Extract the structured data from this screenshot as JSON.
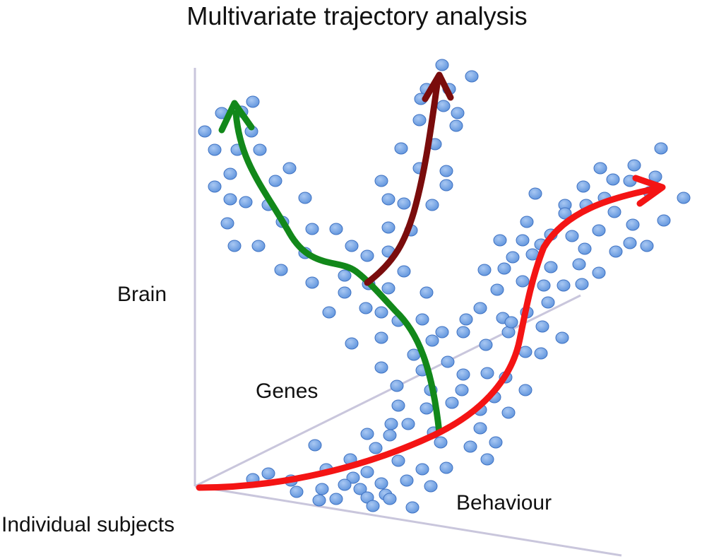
{
  "title": "Multivariate trajectory analysis",
  "axes": {
    "vertical": "Brain",
    "diagonal": "Genes",
    "horizontal": "Behaviour",
    "origin": "Individual subjects"
  },
  "colors": {
    "dot_fill": "#6b9fe0",
    "dot_stroke": "#3f72c2",
    "axis_line": "#c9c6dc",
    "trajectory_green": "#12881a",
    "trajectory_darkred": "#7a0c0c",
    "trajectory_red": "#f41414"
  },
  "trajectories": [
    {
      "name": "green",
      "color_key": "trajectory_green"
    },
    {
      "name": "darkred",
      "color_key": "trajectory_darkred"
    },
    {
      "name": "red",
      "color_key": "trajectory_red"
    }
  ]
}
